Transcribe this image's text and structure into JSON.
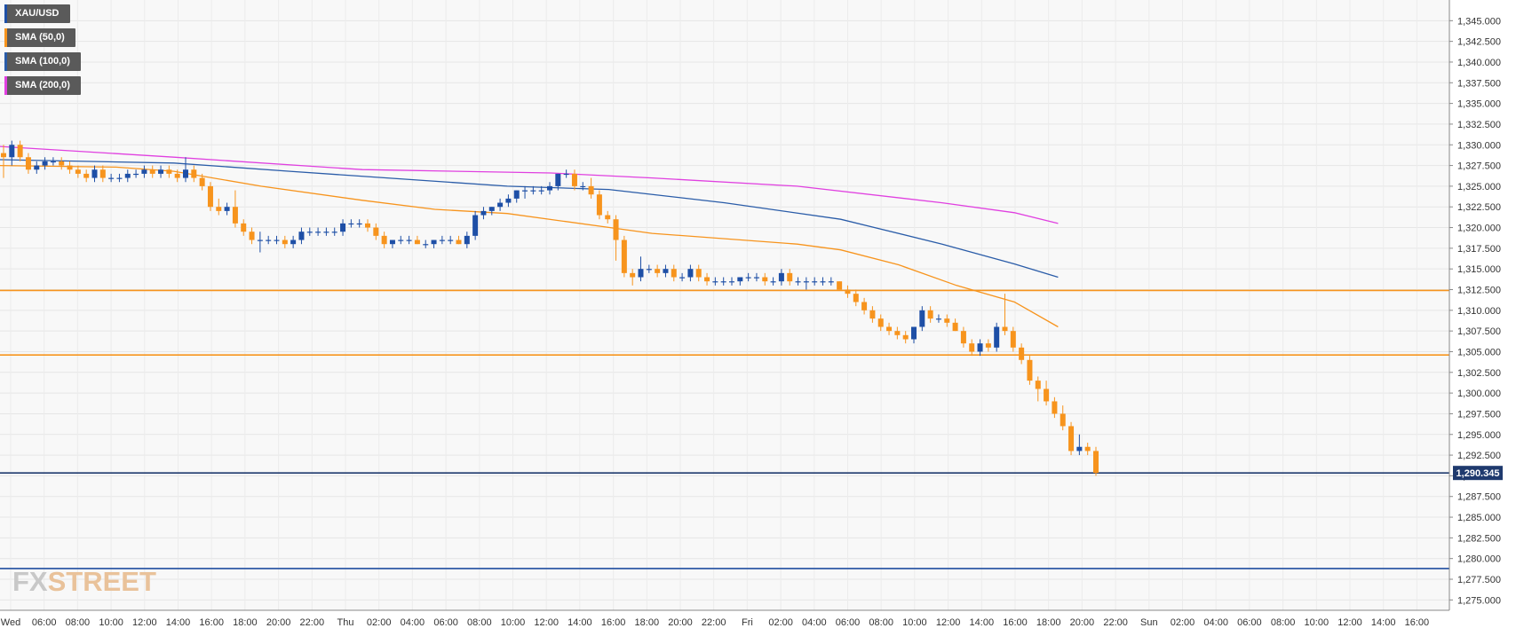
{
  "chart_data": {
    "type": "candlestick",
    "symbol": "XAU/USD",
    "ylim": [
      1273.75,
      1347.5
    ],
    "y_ticks": [
      "1,275.000",
      "1,277.500",
      "1,280.000",
      "1,282.500",
      "1,285.000",
      "1,287.500",
      "1,290.000",
      "1,292.500",
      "1,295.000",
      "1,297.500",
      "1,300.000",
      "1,302.500",
      "1,305.000",
      "1,307.500",
      "1,310.000",
      "1,312.500",
      "1,315.000",
      "1,317.500",
      "1,320.000",
      "1,322.500",
      "1,325.000",
      "1,327.500",
      "1,330.000",
      "1,332.500",
      "1,335.000",
      "1,337.500",
      "1,340.000",
      "1,342.500",
      "1,345.000"
    ],
    "x_ticks": [
      "Wed",
      "06:00",
      "08:00",
      "10:00",
      "12:00",
      "14:00",
      "16:00",
      "18:00",
      "20:00",
      "22:00",
      "Thu",
      "02:00",
      "04:00",
      "06:00",
      "08:00",
      "10:00",
      "12:00",
      "14:00",
      "16:00",
      "18:00",
      "20:00",
      "22:00",
      "Fri",
      "02:00",
      "04:00",
      "06:00",
      "08:00",
      "10:00",
      "12:00",
      "14:00",
      "16:00",
      "18:00",
      "20:00",
      "22:00",
      "Sun",
      "02:00",
      "04:00",
      "06:00",
      "08:00",
      "10:00",
      "12:00",
      "14:00",
      "16:00"
    ],
    "candles": [
      [
        1329.0,
        1330.0,
        1326.0,
        1328.5
      ],
      [
        1328.5,
        1330.5,
        1327.5,
        1330.0
      ],
      [
        1330.0,
        1330.5,
        1328.0,
        1328.5
      ],
      [
        1328.5,
        1329.0,
        1326.5,
        1327.0
      ],
      [
        1327.0,
        1328.0,
        1326.5,
        1327.5
      ],
      [
        1327.5,
        1328.5,
        1327.0,
        1328.0
      ],
      [
        1328.0,
        1328.5,
        1327.5,
        1328.0
      ],
      [
        1328.0,
        1328.5,
        1327.0,
        1327.5
      ],
      [
        1327.5,
        1328.0,
        1326.5,
        1327.0
      ],
      [
        1327.0,
        1327.5,
        1326.0,
        1326.5
      ],
      [
        1326.5,
        1327.0,
        1325.5,
        1326.0
      ],
      [
        1326.0,
        1327.5,
        1325.5,
        1327.0
      ],
      [
        1327.0,
        1327.5,
        1325.5,
        1326.0
      ],
      [
        1326.0,
        1326.5,
        1325.5,
        1326.0
      ],
      [
        1326.0,
        1326.5,
        1325.5,
        1326.0
      ],
      [
        1326.0,
        1327.0,
        1325.5,
        1326.5
      ],
      [
        1326.5,
        1327.0,
        1326.0,
        1326.5
      ],
      [
        1326.5,
        1327.5,
        1326.0,
        1327.0
      ],
      [
        1327.0,
        1327.5,
        1326.0,
        1326.5
      ],
      [
        1326.5,
        1327.5,
        1326.0,
        1327.0
      ],
      [
        1327.0,
        1327.5,
        1326.0,
        1326.5
      ],
      [
        1326.5,
        1327.0,
        1325.5,
        1326.0
      ],
      [
        1326.0,
        1328.5,
        1325.5,
        1327.0
      ],
      [
        1327.0,
        1327.5,
        1325.5,
        1326.0
      ],
      [
        1326.0,
        1326.5,
        1324.5,
        1325.0
      ],
      [
        1325.0,
        1325.5,
        1322.0,
        1322.5
      ],
      [
        1322.5,
        1323.5,
        1321.5,
        1322.0
      ],
      [
        1322.0,
        1323.0,
        1321.5,
        1322.5
      ],
      [
        1322.5,
        1324.5,
        1320.0,
        1320.5
      ],
      [
        1320.5,
        1321.0,
        1319.0,
        1319.5
      ],
      [
        1319.5,
        1320.0,
        1318.0,
        1318.5
      ],
      [
        1318.5,
        1319.5,
        1317.0,
        1318.5
      ],
      [
        1318.5,
        1319.0,
        1318.0,
        1318.5
      ],
      [
        1318.5,
        1319.0,
        1318.0,
        1318.5
      ],
      [
        1318.5,
        1319.0,
        1317.5,
        1318.0
      ],
      [
        1318.0,
        1319.0,
        1317.5,
        1318.5
      ],
      [
        1318.5,
        1320.0,
        1318.0,
        1319.5
      ],
      [
        1319.5,
        1320.0,
        1319.0,
        1319.5
      ],
      [
        1319.5,
        1320.0,
        1319.0,
        1319.5
      ],
      [
        1319.5,
        1320.0,
        1319.0,
        1319.5
      ],
      [
        1319.5,
        1320.0,
        1319.0,
        1319.5
      ],
      [
        1319.5,
        1321.0,
        1319.0,
        1320.5
      ],
      [
        1320.5,
        1321.0,
        1320.0,
        1320.5
      ],
      [
        1320.5,
        1321.0,
        1320.0,
        1320.5
      ],
      [
        1320.5,
        1321.0,
        1319.5,
        1320.0
      ],
      [
        1320.0,
        1320.5,
        1318.5,
        1319.0
      ],
      [
        1319.0,
        1319.5,
        1317.5,
        1318.0
      ],
      [
        1318.0,
        1318.5,
        1317.5,
        1318.5
      ],
      [
        1318.5,
        1319.0,
        1318.0,
        1318.5
      ],
      [
        1318.5,
        1319.0,
        1318.0,
        1318.5
      ],
      [
        1318.5,
        1319.0,
        1318.0,
        1318.0
      ],
      [
        1318.0,
        1318.5,
        1317.5,
        1318.0
      ],
      [
        1318.0,
        1318.5,
        1317.5,
        1318.5
      ],
      [
        1318.5,
        1319.0,
        1318.0,
        1318.5
      ],
      [
        1318.5,
        1319.0,
        1318.0,
        1318.5
      ],
      [
        1318.5,
        1319.0,
        1318.0,
        1318.0
      ],
      [
        1318.0,
        1319.5,
        1317.5,
        1319.0
      ],
      [
        1319.0,
        1322.0,
        1318.5,
        1321.5
      ],
      [
        1321.5,
        1322.5,
        1321.0,
        1322.0
      ],
      [
        1322.0,
        1322.5,
        1321.5,
        1322.5
      ],
      [
        1322.5,
        1323.5,
        1322.0,
        1323.0
      ],
      [
        1323.0,
        1324.0,
        1322.5,
        1323.5
      ],
      [
        1323.5,
        1324.5,
        1323.0,
        1324.5
      ],
      [
        1324.5,
        1325.0,
        1323.5,
        1324.5
      ],
      [
        1324.5,
        1325.0,
        1324.0,
        1324.5
      ],
      [
        1324.5,
        1325.0,
        1324.0,
        1324.5
      ],
      [
        1324.5,
        1325.5,
        1324.0,
        1325.0
      ],
      [
        1325.0,
        1326.5,
        1324.5,
        1326.5
      ],
      [
        1326.5,
        1327.0,
        1326.0,
        1326.5
      ],
      [
        1326.5,
        1327.0,
        1324.5,
        1325.0
      ],
      [
        1325.0,
        1325.5,
        1324.5,
        1325.0
      ],
      [
        1325.0,
        1326.0,
        1323.5,
        1324.0
      ],
      [
        1324.0,
        1324.5,
        1321.0,
        1321.5
      ],
      [
        1321.5,
        1322.0,
        1320.5,
        1321.0
      ],
      [
        1321.0,
        1321.5,
        1316.0,
        1318.5
      ],
      [
        1318.5,
        1319.0,
        1314.0,
        1314.5
      ],
      [
        1314.5,
        1315.0,
        1313.0,
        1314.0
      ],
      [
        1314.0,
        1316.5,
        1313.5,
        1315.0
      ],
      [
        1315.0,
        1315.5,
        1314.5,
        1315.0
      ],
      [
        1315.0,
        1315.5,
        1314.0,
        1314.5
      ],
      [
        1314.5,
        1315.5,
        1314.0,
        1315.0
      ],
      [
        1315.0,
        1315.5,
        1313.5,
        1314.0
      ],
      [
        1314.0,
        1314.5,
        1313.5,
        1314.0
      ],
      [
        1314.0,
        1315.5,
        1313.5,
        1315.0
      ],
      [
        1315.0,
        1315.5,
        1313.5,
        1314.0
      ],
      [
        1314.0,
        1314.5,
        1313.0,
        1313.5
      ],
      [
        1313.5,
        1314.0,
        1313.0,
        1313.5
      ],
      [
        1313.5,
        1314.0,
        1313.0,
        1313.5
      ],
      [
        1313.5,
        1314.0,
        1313.0,
        1313.5
      ],
      [
        1313.5,
        1314.0,
        1313.0,
        1314.0
      ],
      [
        1314.0,
        1314.5,
        1313.5,
        1314.0
      ],
      [
        1314.0,
        1314.5,
        1313.5,
        1314.0
      ],
      [
        1314.0,
        1314.5,
        1313.0,
        1313.5
      ],
      [
        1313.5,
        1314.0,
        1313.0,
        1313.5
      ],
      [
        1313.5,
        1315.0,
        1313.0,
        1314.5
      ],
      [
        1314.5,
        1315.0,
        1313.0,
        1313.5
      ],
      [
        1313.5,
        1314.0,
        1313.0,
        1313.5
      ],
      [
        1313.5,
        1314.0,
        1312.5,
        1313.5
      ],
      [
        1313.5,
        1314.0,
        1313.0,
        1313.5
      ],
      [
        1313.5,
        1314.0,
        1313.0,
        1313.5
      ],
      [
        1313.5,
        1314.0,
        1313.0,
        1313.5
      ],
      [
        1313.5,
        1313.5,
        1312.5,
        1312.5
      ],
      [
        1312.5,
        1313.0,
        1311.5,
        1312.0
      ],
      [
        1312.0,
        1312.5,
        1310.5,
        1311.0
      ],
      [
        1311.0,
        1311.5,
        1309.5,
        1310.0
      ],
      [
        1310.0,
        1310.5,
        1308.5,
        1309.0
      ],
      [
        1309.0,
        1309.5,
        1307.5,
        1308.0
      ],
      [
        1308.0,
        1308.5,
        1307.0,
        1307.5
      ],
      [
        1307.5,
        1308.0,
        1306.5,
        1307.0
      ],
      [
        1307.0,
        1307.5,
        1306.0,
        1306.5
      ],
      [
        1306.5,
        1308.0,
        1306.0,
        1308.0
      ],
      [
        1308.0,
        1310.5,
        1307.5,
        1310.0
      ],
      [
        1310.0,
        1310.5,
        1308.5,
        1309.0
      ],
      [
        1309.0,
        1309.5,
        1308.5,
        1309.0
      ],
      [
        1309.0,
        1309.5,
        1308.0,
        1308.5
      ],
      [
        1308.5,
        1309.0,
        1307.5,
        1307.5
      ],
      [
        1307.5,
        1308.0,
        1305.5,
        1306.0
      ],
      [
        1306.0,
        1306.5,
        1304.5,
        1305.0
      ],
      [
        1305.0,
        1306.5,
        1304.5,
        1306.0
      ],
      [
        1306.0,
        1306.5,
        1305.0,
        1305.5
      ],
      [
        1305.5,
        1308.5,
        1305.0,
        1308.0
      ],
      [
        1308.0,
        1312.0,
        1307.0,
        1307.5
      ],
      [
        1307.5,
        1308.0,
        1305.0,
        1305.5
      ],
      [
        1305.5,
        1306.0,
        1303.5,
        1304.0
      ],
      [
        1304.0,
        1304.5,
        1301.0,
        1301.5
      ],
      [
        1301.5,
        1302.0,
        1299.0,
        1300.5
      ],
      [
        1300.5,
        1301.5,
        1298.5,
        1299.0
      ],
      [
        1299.0,
        1299.5,
        1297.0,
        1297.5
      ],
      [
        1297.5,
        1298.5,
        1295.5,
        1296.0
      ],
      [
        1296.0,
        1296.5,
        1292.5,
        1293.0
      ],
      [
        1293.0,
        1295.0,
        1292.5,
        1293.5
      ],
      [
        1293.5,
        1294.0,
        1292.5,
        1293.0
      ],
      [
        1293.0,
        1293.5,
        1290.0,
        1290.345
      ]
    ],
    "sma": [
      {
        "name": "SMA (50,0)",
        "color": "#f7941d",
        "values": [
          [
            0,
            1327.5
          ],
          [
            0.08,
            1327.3
          ],
          [
            0.12,
            1326.8
          ],
          [
            0.18,
            1325.0
          ],
          [
            0.25,
            1323.3
          ],
          [
            0.3,
            1322.2
          ],
          [
            0.35,
            1321.7
          ],
          [
            0.45,
            1319.3
          ],
          [
            0.55,
            1318.0
          ],
          [
            0.58,
            1317.3
          ],
          [
            0.62,
            1315.5
          ],
          [
            0.66,
            1313.0
          ],
          [
            0.7,
            1311.0
          ],
          [
            0.73,
            1308.0
          ]
        ]
      },
      {
        "name": "SMA (100,0)",
        "color": "#2a5ca8",
        "values": [
          [
            0,
            1328.2
          ],
          [
            0.12,
            1327.8
          ],
          [
            0.2,
            1326.8
          ],
          [
            0.35,
            1325.0
          ],
          [
            0.42,
            1324.6
          ],
          [
            0.5,
            1323.0
          ],
          [
            0.58,
            1321.0
          ],
          [
            0.65,
            1318.0
          ],
          [
            0.7,
            1315.6
          ],
          [
            0.73,
            1314.0
          ]
        ]
      },
      {
        "name": "SMA (200,0)",
        "color": "#e040e0",
        "values": [
          [
            0,
            1329.8
          ],
          [
            0.12,
            1328.5
          ],
          [
            0.25,
            1327.0
          ],
          [
            0.38,
            1326.6
          ],
          [
            0.45,
            1326.0
          ],
          [
            0.55,
            1325.0
          ],
          [
            0.65,
            1323.0
          ],
          [
            0.7,
            1321.8
          ],
          [
            0.73,
            1320.5
          ]
        ]
      }
    ],
    "horizontal_lines": [
      {
        "value": 1312.4,
        "color": "#f7941d"
      },
      {
        "value": 1304.6,
        "color": "#f7941d"
      },
      {
        "value": 1290.345,
        "color": "#1f3a6e"
      },
      {
        "value": 1278.8,
        "color": "#1f4ea0"
      }
    ],
    "last_price_label": "1,290.345",
    "bull_color": "#1e4fa6",
    "bear_color": "#f7941d",
    "grid": true
  },
  "legend": {
    "items": [
      {
        "label": "XAU/USD",
        "color": "#1e4fa6"
      },
      {
        "label": "SMA (50,0)",
        "color": "#f7941d"
      },
      {
        "label": "SMA (100,0)",
        "color": "#2a5ca8"
      },
      {
        "label": "SMA (200,0)",
        "color": "#e040e0"
      }
    ]
  },
  "brand": {
    "fx": "FX",
    "street": "STREET"
  }
}
